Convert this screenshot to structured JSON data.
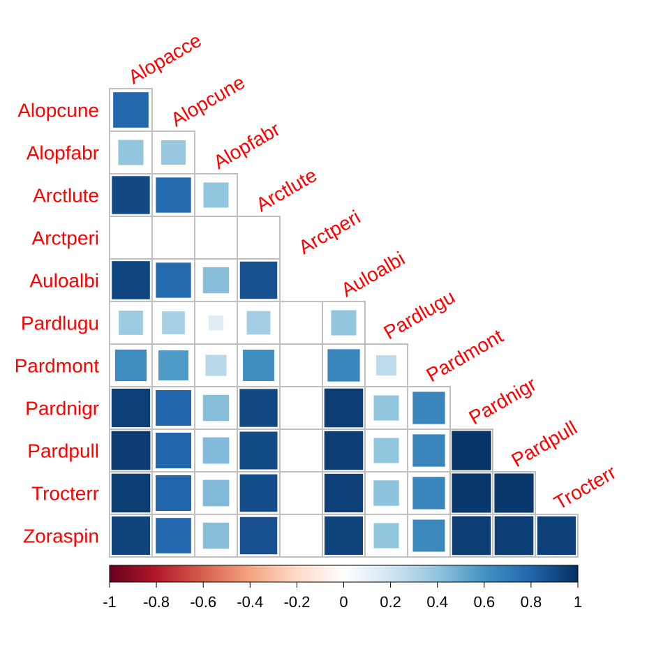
{
  "chart_data": {
    "type": "heatmap",
    "title": "",
    "xlabel": "",
    "ylabel": "",
    "row_labels": [
      "Alopcune",
      "Alopfabr",
      "Arctlute",
      "Arctperi",
      "Auloalbi",
      "Pardlugu",
      "Pardmont",
      "Pardnigr",
      "Pardpull",
      "Trocterr",
      "Zoraspin"
    ],
    "col_labels": [
      "Alopacce",
      "Alopcune",
      "Alopfabr",
      "Arctlute",
      "Arctperi",
      "Auloalbi",
      "Pardlugu",
      "Pardmont",
      "Pardnigr",
      "Pardpull",
      "Trocterr"
    ],
    "values": [
      [
        0.79
      ],
      [
        0.4,
        0.38
      ],
      [
        0.91,
        0.78,
        0.4
      ],
      [
        0.0,
        0.0,
        0.0,
        0.0
      ],
      [
        0.92,
        0.78,
        0.43,
        0.88
      ],
      [
        0.37,
        0.33,
        0.14,
        0.35,
        0.0,
        0.4
      ],
      [
        0.63,
        0.57,
        0.28,
        0.62,
        0.0,
        0.66,
        0.26
      ],
      [
        0.94,
        0.8,
        0.43,
        0.91,
        0.0,
        0.95,
        0.4,
        0.66
      ],
      [
        0.96,
        0.8,
        0.44,
        0.9,
        0.0,
        0.95,
        0.4,
        0.66,
        0.98
      ],
      [
        0.95,
        0.8,
        0.44,
        0.89,
        0.0,
        0.94,
        0.41,
        0.66,
        0.97,
        0.97
      ],
      [
        0.93,
        0.79,
        0.43,
        0.88,
        0.0,
        0.93,
        0.4,
        0.65,
        0.95,
        0.95,
        0.94
      ]
    ],
    "color_scale": {
      "min": -1,
      "max": 1,
      "ticks": [
        -1,
        -0.8,
        -0.6,
        -0.4,
        -0.2,
        0,
        0.2,
        0.4,
        0.6,
        0.8,
        1
      ],
      "tick_labels": [
        "-1",
        "-0.8",
        "-0.6",
        "-0.4",
        "-0.2",
        "0",
        "0.2",
        "0.4",
        "0.6",
        "0.8",
        "1"
      ],
      "stops": [
        "#67001F",
        "#B2182B",
        "#D6604D",
        "#F4A582",
        "#FDDBC7",
        "#FFFFFF",
        "#D1E5F0",
        "#92C5DE",
        "#4393C3",
        "#2166AC",
        "#053061"
      ]
    },
    "label_color": "#FF0000",
    "grid_color": "#C0C0C0",
    "legend_placement": "bottom"
  }
}
